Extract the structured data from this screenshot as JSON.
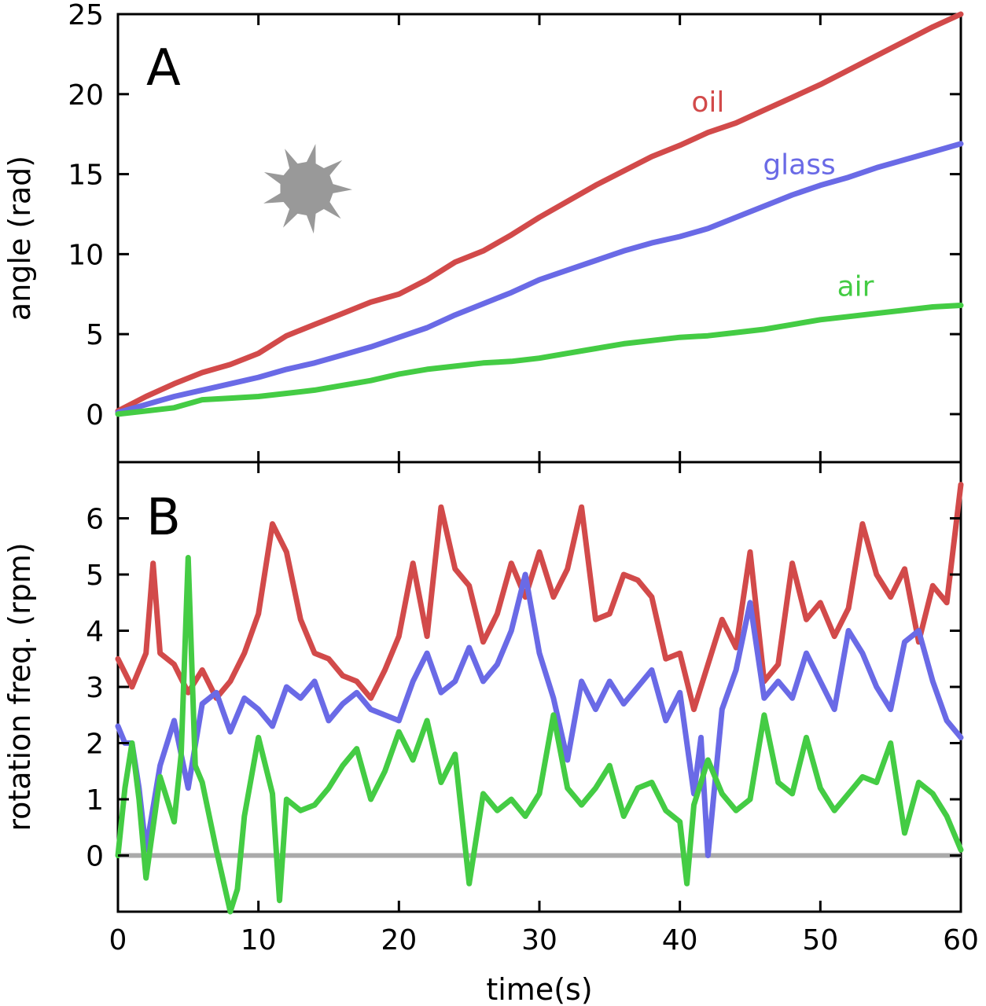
{
  "chart_data": [
    {
      "panel": "A",
      "type": "line",
      "ylabel": "angle (rad)",
      "xlabel": "time(s)",
      "xlim": [
        0,
        60
      ],
      "ylim": [
        -3,
        25
      ],
      "xticks": [
        0,
        10,
        20,
        30,
        40,
        50,
        60
      ],
      "yticks": [
        0,
        5,
        10,
        15,
        20,
        25
      ],
      "grid": false,
      "icon": "gear-star-icon",
      "series": [
        {
          "name": "oil",
          "color": "#d24a4a",
          "x": [
            0,
            2,
            4,
            6,
            8,
            10,
            12,
            14,
            16,
            18,
            20,
            22,
            24,
            26,
            28,
            30,
            32,
            34,
            36,
            38,
            40,
            42,
            44,
            46,
            48,
            50,
            52,
            54,
            56,
            58,
            60
          ],
          "y": [
            0.2,
            1.1,
            1.9,
            2.6,
            3.1,
            3.8,
            4.9,
            5.6,
            6.3,
            7.0,
            7.5,
            8.4,
            9.5,
            10.2,
            11.2,
            12.3,
            13.3,
            14.3,
            15.2,
            16.1,
            16.8,
            17.6,
            18.2,
            19.0,
            19.8,
            20.6,
            21.5,
            22.4,
            23.3,
            24.2,
            25.0
          ]
        },
        {
          "name": "glass",
          "color": "#6a6ae6",
          "x": [
            0,
            2,
            4,
            6,
            8,
            10,
            12,
            14,
            16,
            18,
            20,
            22,
            24,
            26,
            28,
            30,
            32,
            34,
            36,
            38,
            40,
            42,
            44,
            46,
            48,
            50,
            52,
            54,
            56,
            58,
            60
          ],
          "y": [
            0.1,
            0.6,
            1.1,
            1.5,
            1.9,
            2.3,
            2.8,
            3.2,
            3.7,
            4.2,
            4.8,
            5.4,
            6.2,
            6.9,
            7.6,
            8.4,
            9.0,
            9.6,
            10.2,
            10.7,
            11.1,
            11.6,
            12.3,
            13.0,
            13.7,
            14.3,
            14.8,
            15.4,
            15.9,
            16.4,
            16.9
          ]
        },
        {
          "name": "air",
          "color": "#44cc44",
          "x": [
            0,
            2,
            4,
            6,
            8,
            10,
            12,
            14,
            16,
            18,
            20,
            22,
            24,
            26,
            28,
            30,
            32,
            34,
            36,
            38,
            40,
            42,
            44,
            46,
            48,
            50,
            52,
            54,
            56,
            58,
            60
          ],
          "y": [
            0.0,
            0.2,
            0.4,
            0.9,
            1.0,
            1.1,
            1.3,
            1.5,
            1.8,
            2.1,
            2.5,
            2.8,
            3.0,
            3.2,
            3.3,
            3.5,
            3.8,
            4.1,
            4.4,
            4.6,
            4.8,
            4.9,
            5.1,
            5.3,
            5.6,
            5.9,
            6.1,
            6.3,
            6.5,
            6.7,
            6.8
          ]
        }
      ],
      "annotations": [
        {
          "text": "oil",
          "series": "oil",
          "x": 42,
          "y": 18.9
        },
        {
          "text": "glass",
          "series": "glass",
          "x": 48.5,
          "y": 15.0
        },
        {
          "text": "air",
          "series": "air",
          "x": 52.5,
          "y": 7.4
        }
      ]
    },
    {
      "panel": "B",
      "type": "line",
      "ylabel": "rotation freq. (rpm)",
      "xlabel": "time(s)",
      "xlim": [
        0,
        60
      ],
      "ylim": [
        -1,
        7
      ],
      "xticks": [
        0,
        10,
        20,
        30,
        40,
        50,
        60
      ],
      "yticks": [
        0,
        1,
        2,
        3,
        4,
        5,
        6
      ],
      "grid": false,
      "reference_line": {
        "y": 0,
        "color": "#aaaaaa"
      },
      "series": [
        {
          "name": "oil",
          "color": "#d24a4a",
          "x": [
            0,
            1,
            2,
            2.5,
            3,
            4,
            5,
            6,
            7,
            8,
            9,
            10,
            11,
            12,
            13,
            14,
            15,
            16,
            17,
            18,
            19,
            20,
            21,
            22,
            23,
            24,
            25,
            26,
            27,
            28,
            29,
            30,
            31,
            32,
            33,
            34,
            35,
            36,
            37,
            38,
            39,
            40,
            41,
            42,
            43,
            44,
            45,
            46,
            47,
            48,
            49,
            50,
            51,
            52,
            53,
            54,
            55,
            56,
            57,
            58,
            59,
            60
          ],
          "y": [
            3.5,
            3.0,
            3.6,
            5.2,
            3.6,
            3.4,
            2.9,
            3.3,
            2.8,
            3.1,
            3.6,
            4.3,
            5.9,
            5.4,
            4.2,
            3.6,
            3.5,
            3.2,
            3.1,
            2.8,
            3.3,
            3.9,
            5.2,
            3.9,
            6.2,
            5.1,
            4.8,
            3.8,
            4.3,
            5.2,
            4.6,
            5.4,
            4.6,
            5.1,
            6.2,
            4.2,
            4.3,
            5.0,
            4.9,
            4.6,
            3.5,
            3.6,
            2.6,
            3.4,
            4.2,
            3.7,
            5.4,
            3.1,
            3.4,
            5.2,
            4.2,
            4.5,
            3.9,
            4.4,
            5.9,
            5.0,
            4.6,
            5.1,
            3.8,
            4.8,
            4.5,
            6.6
          ]
        },
        {
          "name": "glass",
          "color": "#6a6ae6",
          "x": [
            0,
            0.5,
            1,
            1.5,
            2,
            3,
            4,
            5,
            6,
            7,
            8,
            9,
            10,
            11,
            12,
            13,
            14,
            15,
            16,
            17,
            18,
            19,
            20,
            21,
            22,
            23,
            24,
            25,
            26,
            27,
            28,
            29,
            30,
            31,
            32,
            33,
            34,
            35,
            36,
            37,
            38,
            39,
            40,
            41,
            41.5,
            42,
            43,
            44,
            45,
            46,
            47,
            48,
            49,
            50,
            51,
            52,
            53,
            54,
            55,
            56,
            57,
            58,
            59,
            60
          ],
          "y": [
            2.3,
            2.0,
            2.0,
            1.2,
            0.1,
            1.6,
            2.4,
            1.2,
            2.7,
            2.9,
            2.2,
            2.8,
            2.6,
            2.3,
            3.0,
            2.8,
            3.1,
            2.4,
            2.7,
            2.9,
            2.6,
            2.5,
            2.4,
            3.1,
            3.6,
            2.9,
            3.1,
            3.7,
            3.1,
            3.4,
            4.0,
            5.0,
            3.6,
            2.8,
            1.7,
            3.1,
            2.6,
            3.1,
            2.7,
            3.0,
            3.3,
            2.4,
            2.9,
            1.1,
            2.1,
            0.0,
            2.6,
            3.3,
            4.5,
            2.8,
            3.1,
            2.8,
            3.6,
            3.1,
            2.6,
            4.0,
            3.6,
            3.0,
            2.6,
            3.8,
            4.0,
            3.1,
            2.4,
            2.1
          ]
        },
        {
          "name": "air",
          "color": "#44cc44",
          "x": [
            0,
            0.5,
            1,
            1.5,
            2,
            3,
            4,
            4.5,
            5,
            5.5,
            6,
            7,
            8,
            8.5,
            9,
            10,
            11,
            11.5,
            12,
            13,
            14,
            15,
            16,
            17,
            18,
            19,
            20,
            21,
            22,
            23,
            24,
            25,
            26,
            27,
            28,
            29,
            30,
            31,
            32,
            33,
            34,
            35,
            36,
            37,
            38,
            39,
            40,
            40.5,
            41,
            42,
            43,
            44,
            45,
            46,
            47,
            48,
            49,
            50,
            51,
            52,
            53,
            54,
            55,
            56,
            57,
            58,
            59,
            60
          ],
          "y": [
            0.0,
            1.2,
            2.0,
            1.0,
            -0.4,
            1.4,
            0.6,
            1.8,
            5.3,
            1.6,
            1.3,
            0.1,
            -1.0,
            -0.6,
            0.7,
            2.1,
            1.1,
            -0.8,
            1.0,
            0.8,
            0.9,
            1.2,
            1.6,
            1.9,
            1.0,
            1.5,
            2.2,
            1.7,
            2.4,
            1.3,
            1.8,
            -0.5,
            1.1,
            0.8,
            1.0,
            0.7,
            1.1,
            2.5,
            1.2,
            0.9,
            1.2,
            1.6,
            0.7,
            1.2,
            1.3,
            0.8,
            0.6,
            -0.5,
            0.9,
            1.7,
            1.1,
            0.8,
            1.0,
            2.5,
            1.3,
            1.1,
            2.1,
            1.2,
            0.8,
            1.1,
            1.4,
            1.3,
            2.0,
            0.4,
            1.3,
            1.1,
            0.7,
            0.1
          ]
        }
      ]
    }
  ]
}
